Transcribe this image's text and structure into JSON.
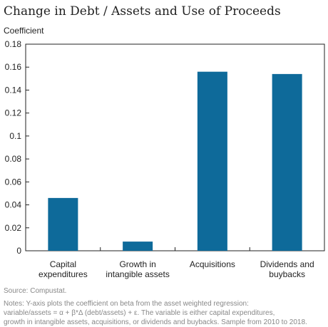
{
  "chart_data": {
    "type": "bar",
    "title": "Change in Debt / Assets and Use of Proceeds",
    "ylabel": "Coefficient",
    "categories": [
      [
        "Capital",
        "expenditures"
      ],
      [
        "Growth in",
        "intangible assets"
      ],
      [
        "Acquisitions"
      ],
      [
        "Dividends and",
        "buybacks"
      ]
    ],
    "values": [
      0.046,
      0.008,
      0.156,
      0.154
    ],
    "ylim": [
      0,
      0.18
    ],
    "yticks": [
      "0",
      "0.02",
      "0.04",
      "0.06",
      "0.08",
      "0.1",
      "0.12",
      "0.14",
      "0.16",
      "0.18"
    ],
    "bar_color": "#0e6a9a",
    "grid": false
  },
  "source": "Source: Compustat.",
  "notes": [
    "Notes: Y-axis plots the coefficient on beta from the asset weighted regression:",
    "variable/assets = α + β*Δ (debt/assets) + ε. The variable is either capital expenditures,",
    "growth in intangible assets, acquisitions, or dividends and buybacks. Sample from 2010 to 2018."
  ]
}
